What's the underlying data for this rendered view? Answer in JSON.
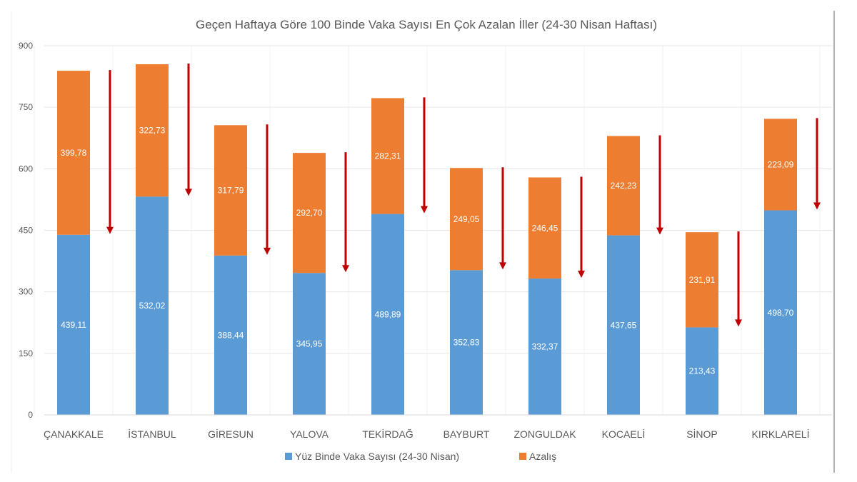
{
  "chart_data": {
    "type": "bar",
    "stacked": true,
    "title": "Geçen Haftaya Göre 100 Binde Vaka Sayısı En Çok Azalan İller (24-30 Nisan Haftası)",
    "xlabel": "",
    "ylabel": "",
    "ylim": [
      0,
      900
    ],
    "yticks": [
      0,
      150,
      300,
      450,
      600,
      750,
      900
    ],
    "grid": true,
    "legend_position": "bottom",
    "categories": [
      "ÇANAKKALE",
      "İSTANBUL",
      "GİRESUN",
      "YALOVA",
      "TEKİRDAĞ",
      "BAYBURT",
      "ZONGULDAK",
      "KOCAELİ",
      "SİNOP",
      "KIRKLARELİ"
    ],
    "series": [
      {
        "name": "Yüz Binde Vaka Sayısı (24-30 Nisan)",
        "color": "#5b9bd5",
        "values": [
          439.11,
          532.02,
          388.44,
          345.95,
          489.89,
          352.83,
          332.37,
          437.65,
          213.43,
          498.7
        ],
        "labels": [
          "439,11",
          "532,02",
          "388,44",
          "345,95",
          "489,89",
          "352,83",
          "332,37",
          "437,65",
          "213,43",
          "498,70"
        ]
      },
      {
        "name": "Azalış",
        "color": "#ed7d31",
        "values": [
          399.78,
          322.73,
          317.79,
          292.7,
          282.31,
          249.05,
          246.45,
          242.23,
          231.91,
          223.09
        ],
        "labels": [
          "399,78",
          "322,73",
          "317,79",
          "292,70",
          "282,31",
          "249,05",
          "246,45",
          "242,23",
          "231,91",
          "223,09"
        ]
      }
    ],
    "annotations": {
      "decrease_arrows": true,
      "arrow_color": "#c00000"
    }
  }
}
